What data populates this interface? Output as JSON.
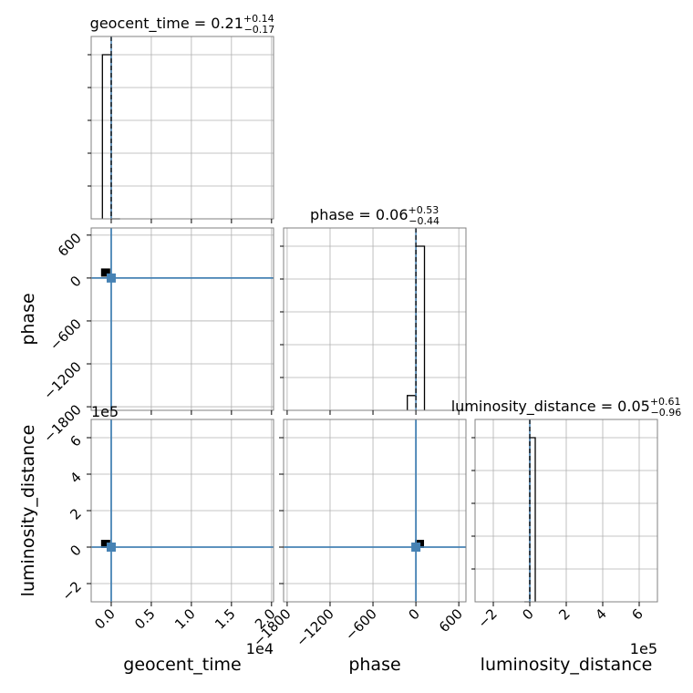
{
  "chart_data": {
    "type": "corner",
    "parameters": [
      "geocent_time",
      "phase",
      "luminosity_distance"
    ],
    "truth_color": "#4682b4",
    "hist_color": "#000000",
    "titles": [
      {
        "name": "geocent_time",
        "median": "0.21",
        "plus": "+0.14",
        "minus": "−0.17"
      },
      {
        "name": "phase",
        "median": "0.06",
        "plus": "+0.53",
        "minus": "−0.44"
      },
      {
        "name": "luminosity_distance",
        "median": "0.05",
        "plus": "+0.61",
        "minus": "−0.96"
      }
    ],
    "axes": {
      "geocent_time": {
        "range": [
          -2500,
          20250
        ],
        "ticks": [
          0,
          5000,
          10000,
          15000,
          20000
        ],
        "tick_labels": [
          "0.0",
          "0.5",
          "1.0",
          "1.5",
          "2.0"
        ],
        "offset_label": "1e4"
      },
      "phase": {
        "range": [
          -1850,
          700
        ],
        "ticks": [
          -1800,
          -1200,
          -600,
          0,
          600
        ],
        "tick_labels": [
          "−1800",
          "−1200",
          "−600",
          "0",
          "600"
        ]
      },
      "luminosity_distance": {
        "range": [
          -300000,
          700000
        ],
        "ticks": [
          -200000,
          0,
          200000,
          400000,
          600000
        ],
        "tick_labels": [
          "−2",
          "0",
          "2",
          "4",
          "6"
        ],
        "offset_label": "1e5"
      }
    },
    "truths": {
      "geocent_time": 0,
      "phase": 0,
      "luminosity_distance": 0
    },
    "histograms": {
      "geocent_time": {
        "edges": [
          -1100,
          0,
          1100
        ],
        "heights": [
          1.0,
          0.0
        ]
      },
      "phase": {
        "edges": [
          -120,
          0,
          120
        ],
        "heights": [
          0.09,
          1.0
        ]
      },
      "luminosity_distance": {
        "edges": [
          -30000,
          0,
          30000
        ],
        "heights": [
          0.0,
          1.0
        ]
      }
    },
    "scatter_peaks": [
      {
        "x_param": "geocent_time",
        "y_param": "phase",
        "x": -700,
        "y": 70
      },
      {
        "x_param": "geocent_time",
        "y_param": "luminosity_distance",
        "x": -700,
        "y": 15000
      },
      {
        "x_param": "phase",
        "y_param": "luminosity_distance",
        "x": 50,
        "y": 15000
      }
    ],
    "grid": true
  }
}
